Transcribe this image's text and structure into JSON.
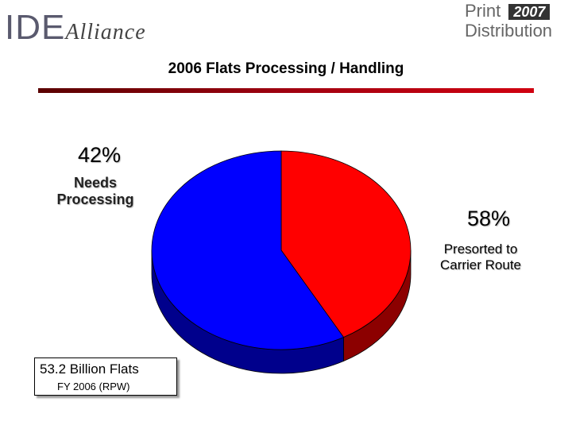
{
  "header": {
    "logo_left_main": "IDE",
    "logo_left_script": "Alliance",
    "logo_right_word1": "Print",
    "logo_right_year": "2007",
    "logo_right_word2": "Distribution"
  },
  "chart_data": {
    "type": "pie",
    "title": "2006 Flats Processing / Handling",
    "categories": [
      "Needs Processing",
      "Presorted to Carrier Route"
    ],
    "values": [
      42,
      58
    ],
    "value_labels": [
      "42%",
      "58%"
    ],
    "colors": [
      "#ff0000",
      "#0000ff"
    ]
  },
  "note": {
    "line1": "53.2 Billion Flats",
    "line2": "FY 2006 (RPW)"
  }
}
